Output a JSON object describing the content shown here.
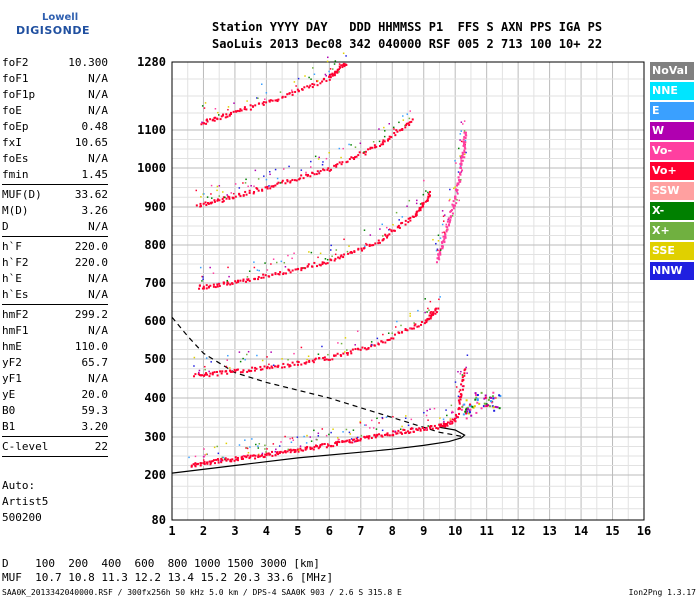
{
  "logo": {
    "line1": "Lowell",
    "line2": "DIGISONDE"
  },
  "header": {
    "line1": "Station YYYY DAY   DDD HHMMSS P1  FFS S AXN PPS IGA PS",
    "line2": "SaoLuis 2013 Dec08 342 040000 RSF 005 2 713 100 10+ 22"
  },
  "params": [
    {
      "key": "foF2",
      "value": "10.300"
    },
    {
      "key": "foF1",
      "value": "N/A"
    },
    {
      "key": "foF1p",
      "value": "N/A"
    },
    {
      "key": "foE",
      "value": "N/A"
    },
    {
      "key": "foEp",
      "value": "0.48"
    },
    {
      "key": "fxI",
      "value": "10.65"
    },
    {
      "key": "foEs",
      "value": "N/A"
    },
    {
      "key": "fmin",
      "value": "1.45",
      "sep": true
    },
    {
      "key": "MUF(D)",
      "value": "33.62"
    },
    {
      "key": "M(D)",
      "value": "3.26"
    },
    {
      "key": "D",
      "value": "N/A",
      "sep": true
    },
    {
      "key": "h`F",
      "value": "220.0"
    },
    {
      "key": "h`F2",
      "value": "220.0"
    },
    {
      "key": "h`E",
      "value": "N/A"
    },
    {
      "key": "h`Es",
      "value": "N/A",
      "sep": true
    },
    {
      "key": "hmF2",
      "value": "299.2"
    },
    {
      "key": "hmF1",
      "value": "N/A"
    },
    {
      "key": "hmE",
      "value": "110.0"
    },
    {
      "key": "yF2",
      "value": "65.7"
    },
    {
      "key": "yF1",
      "value": "N/A"
    },
    {
      "key": "yE",
      "value": "20.0"
    },
    {
      "key": "B0",
      "value": "59.3"
    },
    {
      "key": "B1",
      "value": "3.20",
      "sep": true
    },
    {
      "key": "C-level",
      "value": "22",
      "sep": true
    }
  ],
  "auto": [
    "Auto:",
    "Artist5",
    "500200"
  ],
  "legend": [
    {
      "label": "NoVal",
      "color": "#808080"
    },
    {
      "label": "NNE",
      "color": "#00e5ff"
    },
    {
      "label": "E",
      "color": "#3aa0ff"
    },
    {
      "label": "W",
      "color": "#b000b0"
    },
    {
      "label": "Vo-",
      "color": "#ff3fa0"
    },
    {
      "label": "Vo+",
      "color": "#ff0030"
    },
    {
      "label": "SSW",
      "color": "#ffa0a0"
    },
    {
      "label": "X-",
      "color": "#008000"
    },
    {
      "label": "X+",
      "color": "#70b040"
    },
    {
      "label": "SSE",
      "color": "#e0d000"
    },
    {
      "label": "NNW",
      "color": "#2020e0"
    }
  ],
  "bottom": {
    "dist_line": "D    100  200  400  600  800 1000 1500 3000 [km]",
    "muf_line": "MUF  10.7 10.8 11.3 12.2 13.4 15.2 20.3 33.6 [MHz]"
  },
  "footer": {
    "left": "SAA0K_2013342040000.RSF / 300fx256h 50 kHz 5.0 km / DPS-4 SAA0K 903 / 2.6 S 315.8 E",
    "right": "Ion2Png 1.3.17"
  },
  "chart_data": {
    "type": "scatter",
    "x_ticks": [
      1,
      2,
      3,
      4,
      5,
      6,
      7,
      8,
      9,
      10,
      11,
      12,
      13,
      14,
      15,
      16
    ],
    "y_ticks": [
      80,
      200,
      300,
      400,
      500,
      600,
      700,
      800,
      900,
      1000,
      1100,
      1280
    ],
    "xlim": [
      1,
      16
    ],
    "ylim": [
      80,
      1280
    ],
    "xlabel": "",
    "ylabel": "",
    "grid": true,
    "traces": [
      {
        "name": "",
        "color": "#ff0030",
        "x": [
          1.6,
          2.5,
          3.5,
          4.5,
          5.5,
          6.5,
          7.5,
          8.5,
          9.5,
          10.0,
          10.3
        ],
        "y": [
          228,
          240,
          250,
          262,
          275,
          290,
          305,
          318,
          330,
          345,
          480
        ]
      },
      {
        "name": "",
        "color": "#ff0030",
        "x": [
          1.7,
          3.0,
          4.5,
          6.0,
          7.5,
          9.0,
          9.4
        ],
        "y": [
          460,
          470,
          485,
          505,
          540,
          600,
          635
        ]
      },
      {
        "name": "",
        "color": "#ff0030",
        "x": [
          1.8,
          3.0,
          4.5,
          6.0,
          7.5,
          8.7,
          9.2
        ],
        "y": [
          690,
          705,
          730,
          760,
          810,
          880,
          940
        ]
      },
      {
        "name": "",
        "color": "#ff0030",
        "x": [
          1.8,
          3.0,
          4.5,
          6.0,
          7.5,
          8.7
        ],
        "y": [
          905,
          930,
          965,
          1000,
          1060,
          1130
        ]
      },
      {
        "name": "",
        "color": "#ff0030",
        "x": [
          1.9,
          3.0,
          4.5,
          6.0,
          6.5
        ],
        "y": [
          1120,
          1150,
          1190,
          1240,
          1280
        ]
      },
      {
        "name": "",
        "color": "#ff3fa0",
        "x": [
          9.4,
          9.7,
          10.0,
          10.2,
          10.3
        ],
        "y": [
          760,
          840,
          930,
          1020,
          1100
        ]
      }
    ],
    "profile_solid": {
      "x": [
        1,
        3,
        5,
        7,
        8,
        9,
        9.8,
        10.2,
        10.3,
        10.0,
        9.5
      ],
      "y": [
        205,
        225,
        245,
        260,
        268,
        278,
        288,
        298,
        305,
        318,
        325
      ]
    },
    "profile_dashed": {
      "x": [
        1,
        1.5,
        2,
        3,
        4,
        5,
        6,
        7,
        8,
        9,
        9.5,
        10.0,
        10.3
      ],
      "y": [
        610,
        560,
        515,
        465,
        440,
        420,
        400,
        375,
        350,
        325,
        312,
        305,
        300
      ]
    },
    "echo_cluster": {
      "x": [
        10.3,
        10.5,
        10.8,
        11.0,
        11.2
      ],
      "y": [
        370,
        380,
        395,
        400,
        390
      ]
    }
  }
}
